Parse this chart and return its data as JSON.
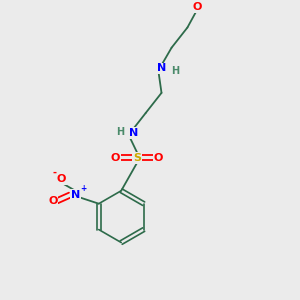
{
  "background_color": "#ebebeb",
  "bond_color": "#2d6b4a",
  "atom_colors": {
    "N": "#0000ff",
    "O": "#ff0000",
    "S": "#ccaa00",
    "H": "#4a8a6a",
    "C": "#2d6b4a"
  },
  "figsize": [
    3.0,
    3.0
  ],
  "dpi": 100,
  "xlim": [
    0,
    10
  ],
  "ylim": [
    0,
    10
  ]
}
